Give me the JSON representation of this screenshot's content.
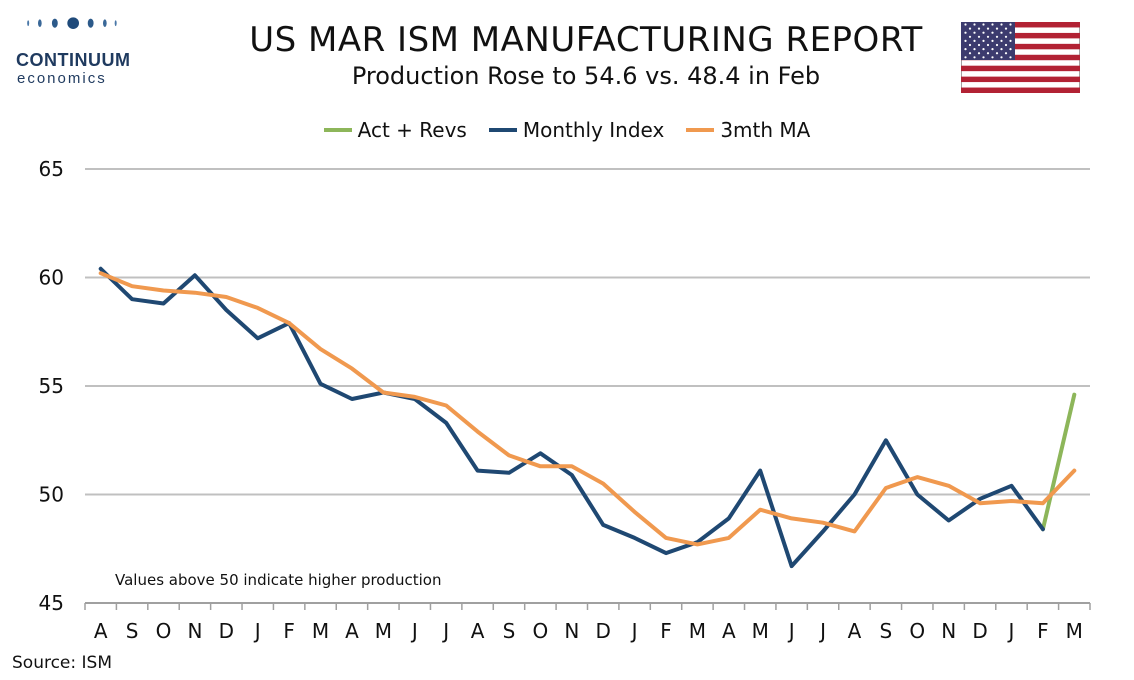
{
  "header": {
    "title": "US MAR ISM MANUFACTURING REPORT",
    "subtitle": "Production Rose to 54.6 vs. 48.4 in Feb"
  },
  "logo": {
    "name": "CONTINUUM",
    "sub": "economics"
  },
  "note": "Values above 50 indicate higher production",
  "source": "Source: ISM",
  "colors": {
    "act": "#8db65a",
    "monthly": "#1f4872",
    "ma": "#f0994f",
    "grid": "#c0c0c0",
    "flag_red": "#b22234",
    "flag_blue": "#3c3b6e"
  },
  "chart_data": {
    "type": "line",
    "ylim": [
      45,
      65
    ],
    "yticks": [
      "45",
      "50",
      "55",
      "60",
      "65"
    ],
    "categories": [
      "A",
      "S",
      "O",
      "N",
      "D",
      "J",
      "F",
      "M",
      "A",
      "M",
      "J",
      "J",
      "A",
      "S",
      "O",
      "N",
      "D",
      "J",
      "F",
      "M",
      "A",
      "M",
      "J",
      "J",
      "A",
      "S",
      "O",
      "N",
      "D",
      "J",
      "F",
      "M"
    ],
    "grid": true,
    "legend_position": "top-center",
    "series": [
      {
        "name": "Act + Revs",
        "values": [
          null,
          null,
          null,
          null,
          null,
          null,
          null,
          null,
          null,
          null,
          null,
          null,
          null,
          null,
          null,
          null,
          null,
          null,
          null,
          null,
          null,
          null,
          null,
          null,
          null,
          null,
          null,
          null,
          null,
          null,
          48.4,
          54.6
        ]
      },
      {
        "name": "Monthly Index",
        "values": [
          60.4,
          59.0,
          58.8,
          60.1,
          58.5,
          57.2,
          57.9,
          55.1,
          54.4,
          54.7,
          54.4,
          53.3,
          51.1,
          51.0,
          51.9,
          50.9,
          48.6,
          48.0,
          47.3,
          47.8,
          48.9,
          51.1,
          46.7,
          48.3,
          50.0,
          52.5,
          50.0,
          48.8,
          49.8,
          50.4,
          48.4,
          null
        ]
      },
      {
        "name": "3mth MA",
        "values": [
          60.2,
          59.6,
          59.4,
          59.3,
          59.1,
          58.6,
          57.9,
          56.7,
          55.8,
          54.7,
          54.5,
          54.1,
          52.9,
          51.8,
          51.3,
          51.3,
          50.5,
          49.2,
          48.0,
          47.7,
          48.0,
          49.3,
          48.9,
          48.7,
          48.3,
          50.3,
          50.8,
          50.4,
          49.6,
          49.7,
          49.6,
          51.1
        ]
      }
    ]
  }
}
